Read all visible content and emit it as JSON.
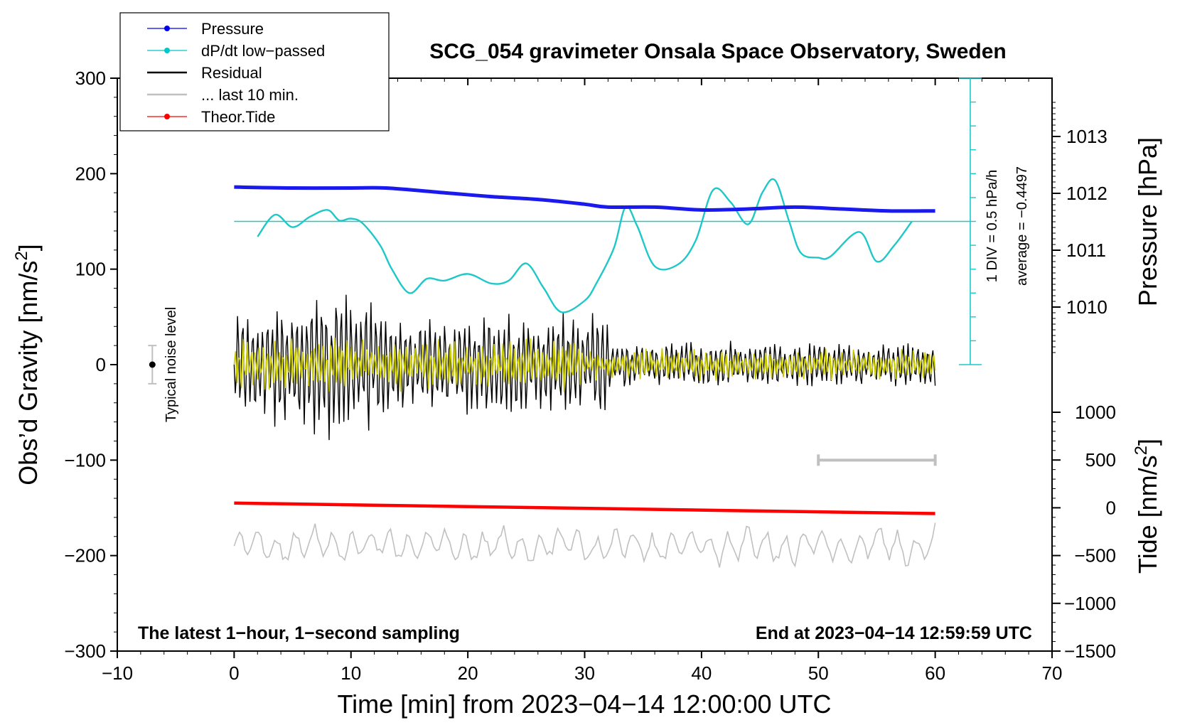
{
  "chart_data": {
    "type": "line",
    "title": "SCG_054 gravimeter Onsala Space Observatory, Sweden",
    "xlabel": "Time [min] from 2023−04−14 12:00:00 UTC",
    "ylabel_left": "Obs’d Gravity [nm/s",
    "ylabel_left_sup": "2",
    "ylabel_left_tail": "]",
    "ylabel_right_pressure": "Pressure [hPa]",
    "ylabel_right_tide": "Tide [nm/s",
    "ylabel_right_tide_sup": "2",
    "ylabel_right_tide_tail": "]",
    "xlim": [
      -10,
      70
    ],
    "ylim": [
      -300,
      300
    ],
    "x_ticks": [
      -10,
      0,
      10,
      20,
      30,
      40,
      50,
      60,
      70
    ],
    "x_tick_labels": [
      "−10",
      "0",
      "10",
      "20",
      "30",
      "40",
      "50",
      "60",
      "70"
    ],
    "y_ticks": [
      300,
      200,
      100,
      0,
      -100,
      -200,
      -300
    ],
    "y_tick_labels": [
      "300",
      "200",
      "100",
      "0",
      "−100",
      "−200",
      "−300"
    ],
    "pressure_ticks": [
      1013,
      1012,
      1011,
      1010
    ],
    "pressure_tick_labels": [
      "1013",
      "1012",
      "1011",
      "1010"
    ],
    "pressure_range_hpa": [
      1009.0,
      1014.0
    ],
    "tide_ticks": [
      1000,
      500,
      0,
      -500,
      -1000,
      -1500
    ],
    "tide_tick_labels": [
      "1000",
      "500",
      "0",
      "−500",
      "−1000",
      "−1500"
    ],
    "tide_range": [
      -1500,
      1000
    ],
    "legend": [
      {
        "label": "Pressure",
        "color": "#0000ee",
        "style": "line-dot"
      },
      {
        "label": "dP/dt low−passed",
        "color": "#00c8c8",
        "style": "line-dot"
      },
      {
        "label": "Residual",
        "color": "#000000",
        "style": "line"
      },
      {
        "label": "... last 10 min.",
        "color": "#c0c0c0",
        "style": "line"
      },
      {
        "label": "Theor.Tide",
        "color": "#ff0000",
        "style": "line-dot"
      }
    ],
    "series": [
      {
        "name": "Pressure",
        "color": "#1a1aee",
        "axis": "pressure_gravity_units",
        "x": [
          0,
          5,
          10,
          13,
          18,
          22,
          26,
          30,
          32,
          36,
          40,
          44,
          48,
          52,
          56,
          60
        ],
        "y": [
          186,
          185,
          185,
          185,
          180,
          176,
          173,
          168,
          165,
          165,
          162,
          163,
          165,
          163,
          161,
          161
        ]
      },
      {
        "name": "dP/dt low-passed",
        "color": "#1ec8c8",
        "axis": "gravity_units",
        "x": [
          2,
          3.5,
          5,
          6.5,
          8,
          9,
          10,
          11,
          12.5,
          13.5,
          15,
          16.5,
          18,
          20,
          22,
          23.5,
          25,
          26.5,
          28,
          30,
          31,
          32.5,
          33.5,
          34.5,
          36,
          38,
          39.5,
          41,
          42.5,
          44,
          45.2,
          46.3,
          47.5,
          48.5,
          50,
          51,
          53.5,
          55,
          56.5,
          58
        ],
        "y": [
          134,
          157,
          144,
          155,
          162,
          151,
          153,
          148,
          125,
          100,
          75,
          90,
          88,
          95,
          85,
          88,
          106,
          80,
          55,
          67,
          85,
          122,
          165,
          145,
          103,
          105,
          130,
          183,
          170,
          147,
          180,
          193,
          150,
          117,
          112,
          113,
          139,
          108,
          125,
          150
        ]
      },
      {
        "name": "dP/dt average line",
        "color": "#1ec8c8",
        "x": [
          0,
          63
        ],
        "y": [
          150,
          150
        ]
      },
      {
        "name": "Residual",
        "color": "#000000",
        "x_range": [
          0,
          60
        ],
        "envelope_peak": 95,
        "envelope_late": 25,
        "min": -105,
        "max": 95
      },
      {
        "name": "Residual (yellow overlay)",
        "color": "#c8c800",
        "x_range": [
          0,
          60
        ],
        "amplitude": 30
      },
      {
        "name": "Theor.Tide",
        "color": "#ff0000",
        "axis": "gravity_units",
        "x": [
          0,
          60
        ],
        "y": [
          -145,
          -156
        ]
      },
      {
        "name": "... last 10 min.",
        "color": "#c0c0c0",
        "axis": "gravity_units",
        "x_range": [
          0,
          60
        ],
        "center": -190,
        "amplitude": 20
      }
    ],
    "annotations": {
      "divider_label": "1 DIV = 0.5 hPa/h",
      "average_label": "average = −0.4497",
      "noise_label": "Typical noise level",
      "bottom_left": "The latest 1−hour, 1−second sampling",
      "bottom_right": "End at 2023−04−14 12:59:59 UTC",
      "noise_bar": {
        "x": -7,
        "y": 0,
        "low": -20,
        "high": 20
      },
      "last10_bar": {
        "x_start": 50,
        "x_end": 60,
        "y": -100
      },
      "div_scale": {
        "x": 63,
        "y_top": 300,
        "y_bottom": 0,
        "divisions": 12
      }
    }
  }
}
